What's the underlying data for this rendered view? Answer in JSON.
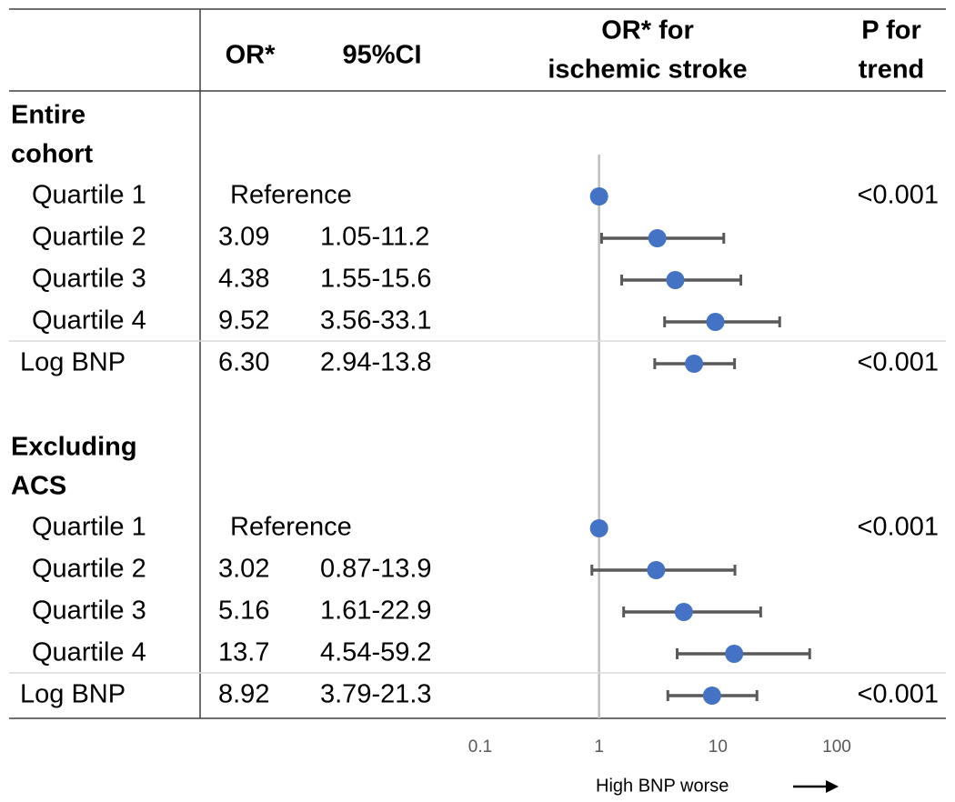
{
  "chart_data": {
    "type": "forest",
    "headers": {
      "or": "OR*",
      "ci": "95%CI",
      "plot": [
        "OR* for",
        "ischemic stroke"
      ],
      "p": [
        "P for",
        "trend"
      ]
    },
    "groups": [
      {
        "label": [
          "Entire",
          "cohort"
        ],
        "rows": [
          "Quartile 1",
          "Quartile 2",
          "Quartile 3",
          "Quartile 4",
          "Log BNP"
        ],
        "values": [
          1,
          3.09,
          4.38,
          9.52,
          6.3
        ],
        "value_labels": [
          "Reference",
          "3.09",
          "4.38",
          "9.52",
          "6.30"
        ],
        "ci_low": [
          null,
          1.05,
          1.55,
          3.56,
          2.94
        ],
        "ci_high": [
          null,
          11.2,
          15.6,
          33.1,
          13.8
        ],
        "ci_labels": [
          null,
          "1.05-11.2",
          "1.55-15.6",
          "3.56-33.1",
          "2.94-13.8"
        ],
        "p_trend": [
          "<0.001",
          null,
          null,
          null,
          "<0.001"
        ]
      },
      {
        "label": [
          "Excluding",
          "ACS"
        ],
        "rows": [
          "Quartile 1",
          "Quartile 2",
          "Quartile 3",
          "Quartile 4",
          "Log BNP"
        ],
        "values": [
          1,
          3.02,
          5.16,
          13.7,
          8.92
        ],
        "value_labels": [
          "Reference",
          "3.02",
          "5.16",
          "13.7",
          "8.92"
        ],
        "ci_low": [
          null,
          0.87,
          1.61,
          4.54,
          3.79
        ],
        "ci_high": [
          null,
          13.9,
          22.9,
          59.2,
          21.3
        ],
        "ci_labels": [
          null,
          "0.87-13.9",
          "1.61-22.9",
          "4.54-59.2",
          "3.79-21.3"
        ],
        "p_trend": [
          "<0.001",
          null,
          null,
          null,
          "<0.001"
        ]
      }
    ],
    "xlim": [
      0.1,
      100
    ],
    "xticks": [
      0.1,
      1,
      10,
      100
    ],
    "log_x": true,
    "reference_line": 1,
    "x_label": "High BNP worse",
    "color": "#4472c4",
    "ci_color": "#595959"
  }
}
